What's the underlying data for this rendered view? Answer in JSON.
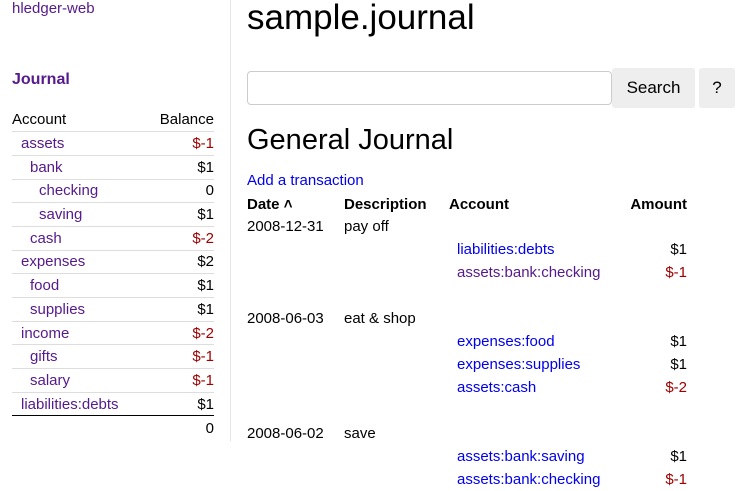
{
  "brand": "hledger-web",
  "sidebar": {
    "journal_link": "Journal",
    "headers": {
      "account": "Account",
      "balance": "Balance"
    },
    "accounts": [
      {
        "name": "assets",
        "balance": "$-1",
        "depth": 1,
        "negative": true
      },
      {
        "name": "bank",
        "balance": "$1",
        "depth": 2,
        "negative": false
      },
      {
        "name": "checking",
        "balance": "0",
        "depth": 3,
        "negative": false
      },
      {
        "name": "saving",
        "balance": "$1",
        "depth": 3,
        "negative": false
      },
      {
        "name": "cash",
        "balance": "$-2",
        "depth": 2,
        "negative": true
      },
      {
        "name": "expenses",
        "balance": "$2",
        "depth": 1,
        "negative": false
      },
      {
        "name": "food",
        "balance": "$1",
        "depth": 2,
        "negative": false
      },
      {
        "name": "supplies",
        "balance": "$1",
        "depth": 2,
        "negative": false
      },
      {
        "name": "income",
        "balance": "$-2",
        "depth": 1,
        "negative": true
      },
      {
        "name": "gifts",
        "balance": "$-1",
        "depth": 2,
        "negative": true
      },
      {
        "name": "salary",
        "balance": "$-1",
        "depth": 2,
        "negative": true
      },
      {
        "name": "liabilities:debts",
        "balance": "$1",
        "depth": 1,
        "negative": false
      }
    ],
    "total": "0"
  },
  "main": {
    "title": "sample.journal",
    "search": {
      "value": "",
      "placeholder": "",
      "button": "Search",
      "help": "?"
    },
    "heading": "General Journal",
    "add_link": "Add a transaction",
    "columns": {
      "date": "Date",
      "description": "Description",
      "account": "Account",
      "amount": "Amount"
    },
    "transactions": [
      {
        "date": "2008-12-31",
        "description": "pay off",
        "postings": [
          {
            "account": "liabilities:debts",
            "amount": "$1",
            "negative": false,
            "visited": false
          },
          {
            "account": "assets:bank:checking",
            "amount": "$-1",
            "negative": true,
            "visited": true
          }
        ]
      },
      {
        "date": "2008-06-03",
        "description": "eat & shop",
        "postings": [
          {
            "account": "expenses:food",
            "amount": "$1",
            "negative": false,
            "visited": false
          },
          {
            "account": "expenses:supplies",
            "amount": "$1",
            "negative": false,
            "visited": false
          },
          {
            "account": "assets:cash",
            "amount": "$-2",
            "negative": true,
            "visited": false
          }
        ]
      },
      {
        "date": "2008-06-02",
        "description": "save",
        "postings": [
          {
            "account": "assets:bank:saving",
            "amount": "$1",
            "negative": false,
            "visited": false
          },
          {
            "account": "assets:bank:checking",
            "amount": "$-1",
            "negative": true,
            "visited": false
          }
        ]
      }
    ]
  },
  "colors": {
    "visited_link": "#551a8b",
    "link": "#0000ee",
    "negative": "#a00000"
  }
}
